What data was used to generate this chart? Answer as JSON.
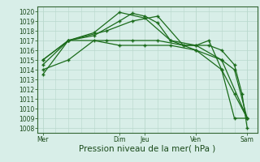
{
  "bg_color": "#d8eee8",
  "plot_bg_color": "#d8eee8",
  "grid_color": "#b8d8cc",
  "line_color": "#1a6b1a",
  "marker_color": "#1a6b1a",
  "ylim": [
    1007.5,
    1020.5
  ],
  "yticks": [
    1008,
    1009,
    1010,
    1011,
    1012,
    1013,
    1014,
    1015,
    1016,
    1017,
    1018,
    1019,
    1020
  ],
  "xlabel": "Pression niveau de la mer( hPa )",
  "xtick_labels": [
    "Mer",
    "",
    "",
    "Dim",
    "Jeu",
    "",
    "Ven",
    "",
    "Sam"
  ],
  "xtick_positions": [
    0,
    1,
    2,
    3,
    4,
    5,
    6,
    7,
    8
  ],
  "vline_major": [
    0,
    3,
    4,
    6,
    8
  ],
  "vline_minor_step": 1,
  "series": [
    [
      0.0,
      1014.0,
      1.0,
      1015.0,
      2.0,
      1017.0,
      3.0,
      1016.5,
      4.0,
      1016.5,
      5.0,
      1016.5,
      6.0,
      1016.0,
      7.0,
      1015.0,
      8.0,
      1009.0
    ],
    [
      0.0,
      1013.5,
      1.0,
      1017.0,
      2.0,
      1017.5,
      3.0,
      1019.0,
      3.5,
      1019.8,
      4.0,
      1019.5,
      4.5,
      1018.8,
      5.0,
      1017.0,
      6.0,
      1016.5,
      6.5,
      1017.0,
      7.0,
      1014.0,
      7.5,
      1011.5,
      8.0,
      1009.0
    ],
    [
      0.0,
      1014.5,
      1.0,
      1017.0,
      2.0,
      1017.8,
      3.0,
      1019.9,
      4.0,
      1019.3,
      5.0,
      1017.0,
      6.0,
      1016.0,
      7.0,
      1014.0,
      7.5,
      1009.0,
      8.0,
      1009.0
    ],
    [
      0.0,
      1015.0,
      1.0,
      1017.0,
      2.5,
      1018.0,
      3.5,
      1019.0,
      4.5,
      1019.5,
      5.5,
      1016.5,
      6.5,
      1016.5,
      7.0,
      1016.0,
      7.5,
      1014.5,
      7.8,
      1011.5,
      8.0,
      1008.0
    ],
    [
      0.0,
      1015.0,
      1.0,
      1017.0,
      2.5,
      1017.0,
      3.5,
      1017.0,
      4.5,
      1017.0,
      5.5,
      1016.5,
      6.0,
      1016.5,
      7.0,
      1015.0,
      7.5,
      1014.0,
      8.0,
      1009.0
    ]
  ],
  "axis_fontsize": 7,
  "tick_fontsize": 5.5,
  "xlabel_fontsize": 7.5
}
